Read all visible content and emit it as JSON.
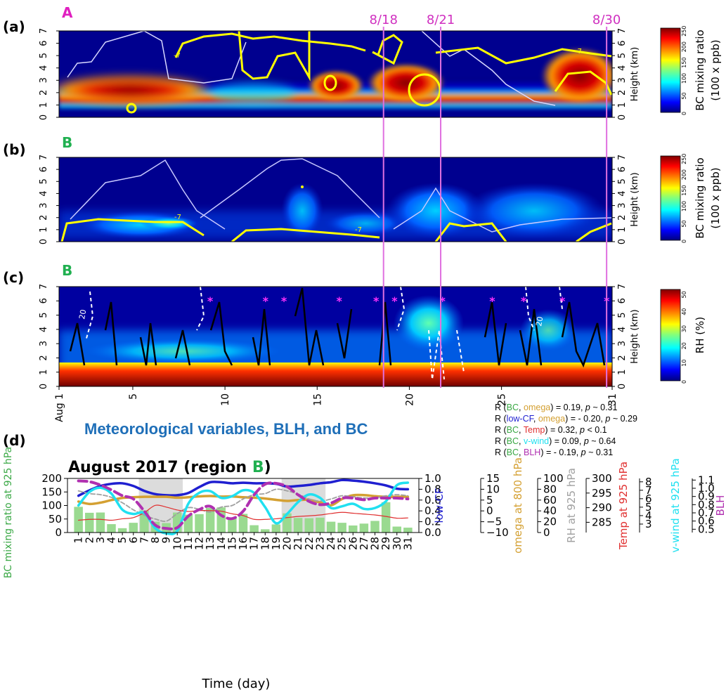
{
  "colors": {
    "jet": [
      "#00007f",
      "#0000ff",
      "#007fff",
      "#00ffff",
      "#7fff7f",
      "#ffff00",
      "#ff7f00",
      "#ff0000",
      "#7f0000"
    ],
    "event_line": "#e070e0",
    "bc_green": "#3aa845",
    "low_cf": "#1f1fd0",
    "omega": "#d4a032",
    "rh": "#a0a0a0",
    "temp": "#e03030",
    "vwind": "#20e0f0",
    "blh": "#b030b0",
    "title_blue": "#1f6fb8",
    "region_A": "#e020c0",
    "region_B": "#20b050",
    "star": "#ff30ff"
  },
  "panels": {
    "a": {
      "label": "(a)",
      "region": "A"
    },
    "b": {
      "label": "(b)",
      "region": "B"
    },
    "c": {
      "label": "(c)",
      "region": "B"
    },
    "d": {
      "label": "(d)"
    }
  },
  "event_labels": [
    "8/18",
    "8/21",
    "8/30"
  ],
  "event_days": [
    18.6,
    21.7,
    30.7
  ],
  "height_axis_label": "Height (km)",
  "height_ticks": [
    "0",
    "1",
    "2",
    "3",
    "4",
    "5",
    "6",
    "7"
  ],
  "colorbars": [
    {
      "label1": "BC mixing ratio",
      "label2": "(100 x ppb)",
      "ticks": [
        "0",
        "50",
        "100",
        "150",
        "200",
        "250"
      ]
    },
    {
      "label1": "BC mixing ratio",
      "label2": "(100 x ppb)",
      "ticks": [
        "0",
        "50",
        "100",
        "150",
        "200",
        "250"
      ]
    },
    {
      "label1": "RH (%)",
      "label2": "",
      "ticks": [
        "0",
        "10",
        "20",
        "30",
        "40",
        "50"
      ]
    }
  ],
  "contour_labels": [
    "-7",
    "20"
  ],
  "time_ticks_c": [
    "Aug 1",
    "5",
    "10",
    "15",
    "20",
    "25",
    "31"
  ],
  "stats": [
    {
      "a": "R (",
      "v1": "BC",
      "c1": "bc",
      "v2": "omega",
      "c2": "omega",
      "tail": ") = 0.19, ",
      "p": "p",
      "ptail": " ~ 0.31"
    },
    {
      "a": "R (",
      "v1": "low-CF",
      "c1": "lowcf",
      "v2": "omega",
      "c2": "omega",
      "tail": ") = - 0.20, ",
      "p": "p",
      "ptail": " ~ 0.29"
    },
    {
      "a": "R (",
      "v1": "BC",
      "c1": "bc",
      "v2": "Temp",
      "c2": "temp",
      "tail": ") = 0.32, ",
      "p": "p",
      "ptail": " < 0.1"
    },
    {
      "a": "R (",
      "v1": "BC",
      "c1": "bc",
      "v2": "v-wind",
      "c2": "vwind",
      "tail": ") = 0.09, ",
      "p": "p",
      "ptail": " ~ 0.64"
    },
    {
      "a": "R (",
      "v1": "BC",
      "c1": "bc",
      "v2": "BLH",
      "c2": "blh",
      "tail": ") = - 0.19, ",
      "p": "p",
      "ptail": " ~ 0.31"
    }
  ],
  "main_title": "Meteorological variables, BLH, and BC",
  "chart_data": {
    "type": "bar",
    "title": "August 2017 (region B)",
    "title_plain": "August 2017 (region ",
    "title_region": "B",
    "title_close": ")",
    "xlabel": "Time (day)",
    "ylabel": "BC mixing ratio at 925 hPa",
    "ylim": [
      0,
      200
    ],
    "yticks": [
      "0",
      "50",
      "100",
      "150",
      "200"
    ],
    "categories": [
      "1",
      "2",
      "3",
      "4",
      "5",
      "6",
      "7",
      "8",
      "9",
      "10",
      "11",
      "12",
      "13",
      "14",
      "15",
      "16",
      "17",
      "18",
      "19",
      "20",
      "21",
      "22",
      "23",
      "24",
      "25",
      "26",
      "27",
      "28",
      "29",
      "30",
      "31"
    ],
    "shaded_ranges": [
      [
        7,
        10
      ],
      [
        20,
        23
      ]
    ],
    "series": [
      {
        "name": "BC",
        "kind": "bar",
        "values": [
          95,
          73,
          74,
          31,
          16,
          36,
          82,
          40,
          35,
          74,
          66,
          68,
          91,
          93,
          55,
          69,
          27,
          12,
          30,
          71,
          54,
          53,
          55,
          40,
          36,
          26,
          33,
          43,
          112,
          22,
          18
        ]
      },
      {
        "name": "low-CF",
        "kind": "line",
        "axis": "lowcf",
        "values": [
          0.68,
          0.78,
          0.86,
          0.9,
          0.91,
          0.86,
          0.77,
          0.71,
          0.69,
          0.69,
          0.73,
          0.84,
          0.93,
          0.93,
          0.91,
          0.92,
          0.91,
          0.91,
          0.9,
          0.85,
          0.86,
          0.88,
          0.91,
          0.93,
          0.97,
          0.96,
          0.94,
          0.91,
          0.87,
          0.81,
          0.8
        ]
      },
      {
        "name": "omega",
        "kind": "line",
        "axis": "omega",
        "values": [
          4.3,
          3.2,
          3.8,
          5.0,
          6.0,
          6.3,
          6.5,
          6.5,
          6.5,
          6.1,
          6.3,
          6.7,
          6.9,
          6.6,
          6.7,
          6.3,
          6.1,
          5.7,
          5.1,
          4.6,
          5.0,
          5.1,
          3.9,
          2.6,
          5.5,
          7.2,
          7.3,
          6.8,
          6.5,
          6.5,
          6.5
        ]
      },
      {
        "name": "RH",
        "kind": "line",
        "axis": "rh",
        "values": [
          77,
          72,
          70,
          65,
          55,
          42,
          32,
          25,
          21,
          35,
          46,
          43,
          38,
          47,
          50,
          62,
          70,
          72,
          80,
          77,
          71,
          62,
          58,
          62,
          68,
          66,
          64,
          64,
          68,
          70,
          68
        ]
      },
      {
        "name": "Temp",
        "kind": "line",
        "axis": "temp",
        "values": [
          285.7,
          286.0,
          286.0,
          285.7,
          286.2,
          286.6,
          288.3,
          290.8,
          290.2,
          289.2,
          288.7,
          289.0,
          289.0,
          288.8,
          287.9,
          287.3,
          286.0,
          286.0,
          286.2,
          286.6,
          287.0,
          287.2,
          287.5,
          288.0,
          288.4,
          288.1,
          287.8,
          287.5,
          287.0,
          286.4,
          286.5
        ]
      },
      {
        "name": "v-wind",
        "kind": "line",
        "axis": "vwind",
        "values": [
          5.2,
          6.8,
          7.3,
          6.6,
          4.7,
          4.2,
          4.3,
          2.5,
          1.9,
          2.2,
          5.4,
          6.7,
          6.9,
          6.1,
          6.3,
          7.0,
          6.7,
          5.0,
          3.1,
          4.2,
          5.6,
          6.5,
          6.1,
          4.9,
          5.1,
          5.4,
          4.8,
          4.9,
          5.7,
          7.6,
          7.9
        ]
      },
      {
        "name": "BLH",
        "kind": "line",
        "axis": "blh",
        "values": [
          1.09,
          1.08,
          1.04,
          0.98,
          0.91,
          0.87,
          0.72,
          0.55,
          0.51,
          0.52,
          0.66,
          0.74,
          0.78,
          0.67,
          0.63,
          0.72,
          0.92,
          1.05,
          1.06,
          1.02,
          0.92,
          0.84,
          0.8,
          0.82,
          0.88,
          0.88,
          0.86,
          0.88,
          0.88,
          0.88,
          0.87
        ]
      }
    ],
    "axes": {
      "lowcf": {
        "label": "low-CF",
        "min": 0.0,
        "max": 1.0,
        "ticks": [
          "0.0",
          "0.2",
          "0.4",
          "0.6",
          "0.8",
          "1.0"
        ],
        "tickvals": [
          0,
          0.2,
          0.4,
          0.6,
          0.8,
          1.0
        ]
      },
      "omega": {
        "label": "omega at 800 hPa",
        "min": -10,
        "max": 15,
        "ticks": [
          "−10",
          "−5",
          "0",
          "5",
          "10",
          "15"
        ],
        "tickvals": [
          -10,
          -5,
          0,
          5,
          10,
          15
        ]
      },
      "rh": {
        "label": "RH at 925 hPa",
        "min": 0,
        "max": 100,
        "ticks": [
          "0",
          "20",
          "40",
          "60",
          "80",
          "100"
        ],
        "tickvals": [
          0,
          20,
          40,
          60,
          80,
          100
        ]
      },
      "temp": {
        "label": "Temp at 925 hPa",
        "min": 281.5,
        "max": 300,
        "ticks": [
          "285",
          "290",
          "295",
          "300"
        ],
        "tickvals": [
          285,
          290,
          295,
          300
        ]
      },
      "vwind": {
        "label": "v-wind at 925 hPa",
        "min": 2,
        "max": 8.4,
        "ticks": [
          "3",
          "4",
          "5",
          "6",
          "7",
          "8"
        ],
        "tickvals": [
          3,
          4,
          5,
          6,
          7,
          8
        ]
      },
      "blh": {
        "label": "BLH",
        "min": 0.46,
        "max": 1.12,
        "ticks": [
          "0.5",
          "0.6",
          "0.7",
          "0.8",
          "0.9",
          "1.0",
          "1.1"
        ],
        "tickvals": [
          0.5,
          0.6,
          0.7,
          0.8,
          0.9,
          1.0,
          1.1
        ]
      }
    }
  }
}
